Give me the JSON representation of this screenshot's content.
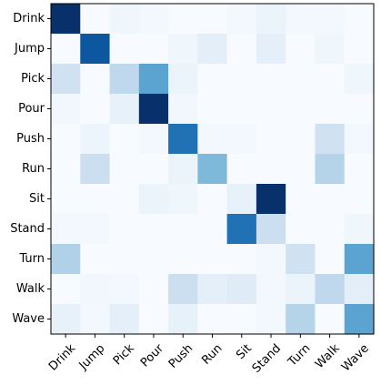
{
  "chart_data": {
    "type": "heatmap",
    "title": "",
    "xlabel": "",
    "ylabel": "",
    "grid": false,
    "legend": "none",
    "colormap": "Blues",
    "colormap_stops": [
      "#f7fbff",
      "#deebf7",
      "#c6dbef",
      "#9ecae1",
      "#6baed6",
      "#4292c6",
      "#2171b5",
      "#08519c",
      "#08306b"
    ],
    "value_range": [
      0,
      1
    ],
    "rows": [
      "Drink",
      "Jump",
      "Pick",
      "Pour",
      "Push",
      "Run",
      "Sit",
      "Stand",
      "Turn",
      "Walk",
      "Wave"
    ],
    "columns": [
      "Drink",
      "Jump",
      "Pick",
      "Pour",
      "Push",
      "Run",
      "Sit",
      "Stand",
      "Turn",
      "Walk",
      "Wave"
    ],
    "values": [
      [
        1.0,
        0.0,
        0.04,
        0.02,
        0.0,
        0.0,
        0.02,
        0.06,
        0.02,
        0.02,
        0.0
      ],
      [
        0.0,
        0.85,
        0.0,
        0.0,
        0.04,
        0.1,
        0.0,
        0.09,
        0.0,
        0.04,
        0.0
      ],
      [
        0.2,
        0.0,
        0.27,
        0.55,
        0.06,
        0.0,
        0.0,
        0.0,
        0.0,
        0.0,
        0.04
      ],
      [
        0.03,
        0.0,
        0.08,
        1.0,
        0.03,
        0.0,
        0.0,
        0.0,
        0.0,
        0.0,
        0.0
      ],
      [
        0.0,
        0.05,
        0.0,
        0.02,
        0.75,
        0.02,
        0.02,
        0.0,
        0.0,
        0.2,
        0.02
      ],
      [
        0.0,
        0.22,
        0.0,
        0.0,
        0.06,
        0.45,
        0.0,
        0.0,
        0.0,
        0.3,
        0.0
      ],
      [
        0.0,
        0.0,
        0.0,
        0.06,
        0.04,
        0.0,
        0.08,
        1.0,
        0.0,
        0.0,
        0.0
      ],
      [
        0.02,
        0.02,
        0.0,
        0.0,
        0.0,
        0.0,
        0.75,
        0.22,
        0.0,
        0.0,
        0.04
      ],
      [
        0.32,
        0.0,
        0.0,
        0.0,
        0.0,
        0.0,
        0.0,
        0.02,
        0.2,
        0.0,
        0.55
      ],
      [
        0.0,
        0.03,
        0.02,
        0.0,
        0.22,
        0.09,
        0.12,
        0.02,
        0.06,
        0.27,
        0.1
      ],
      [
        0.08,
        0.02,
        0.09,
        0.0,
        0.08,
        0.0,
        0.0,
        0.02,
        0.3,
        0.0,
        0.55
      ]
    ]
  }
}
